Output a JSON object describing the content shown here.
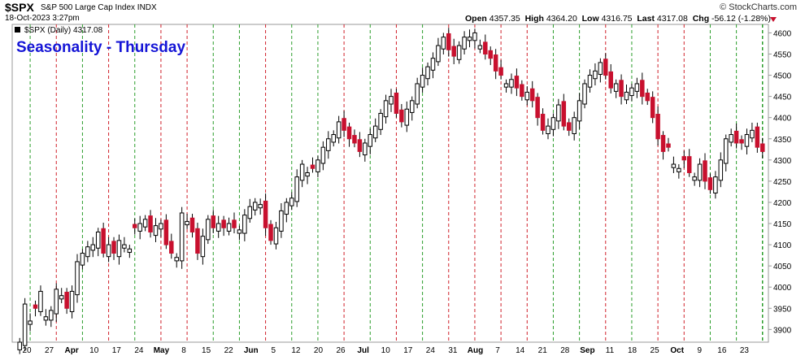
{
  "header": {
    "symbol": "$SPX",
    "description": "S&P 500 Large Cap Index INDX",
    "date": "18-Oct-2023 3:27pm",
    "brand": "© StockCharts.com",
    "open_label": "Open",
    "open": "4357.35",
    "high_label": "High",
    "high": "4364.20",
    "low_label": "Low",
    "low": "4316.75",
    "last_label": "Last",
    "last": "4317.08",
    "chg_label": "Chg",
    "chg": "-56.12 (-1.28%)",
    "legend": "$SPX (Daily) 4317.08",
    "chg_color": "#c8102e"
  },
  "chart_data": {
    "type": "candlestick",
    "title": "Seasonality - Thursday",
    "title_color": "#1515d6",
    "up_color": "#ffffff",
    "down_color": "#c8102e",
    "ylim": [
      3870,
      4620
    ],
    "yticks": [
      3900,
      3950,
      4000,
      4050,
      4100,
      4150,
      4200,
      4250,
      4300,
      4350,
      4400,
      4450,
      4500,
      4550,
      4600
    ],
    "x_labels": [
      "20",
      "27",
      "Apr",
      "10",
      "17",
      "24",
      "May",
      "8",
      "15",
      "22",
      "Jun",
      "5",
      "12",
      "20",
      "26",
      "Jul",
      "10",
      "17",
      "24",
      "31",
      "Aug",
      "7",
      "14",
      "21",
      "28",
      "Sep",
      "11",
      "18",
      "25",
      "Oct",
      "9",
      "16",
      "23"
    ],
    "thursday_line_colors": [
      "green",
      "red"
    ],
    "closes": [
      3870,
      3960,
      3920,
      3950,
      3990,
      3930,
      3945,
      3995,
      3980,
      3950,
      3990,
      4060,
      4080,
      4095,
      4100,
      4130,
      4080,
      4100,
      4080,
      4110,
      4100,
      4090,
      4140,
      4150,
      4160,
      4130,
      4145,
      4150,
      4100,
      4080,
      4070,
      4175,
      4155,
      4130,
      4080,
      4120,
      4160,
      4140,
      4150,
      4140,
      4150,
      4140,
      4135,
      4170,
      4190,
      4200,
      4195,
      4140,
      4110,
      4140,
      4180,
      4200,
      4210,
      4260,
      4290,
      4270,
      4280,
      4300,
      4330,
      4350,
      4360,
      4390,
      4370,
      4350,
      4340,
      4320,
      4340,
      4360,
      4380,
      4410,
      4440,
      4450,
      4410,
      4390,
      4420,
      4440,
      4480,
      4500,
      4520,
      4540,
      4570,
      4590,
      4560,
      4545,
      4570,
      4590,
      4590,
      4600,
      4570,
      4550,
      4540,
      4510,
      4500,
      4480,
      4490,
      4470,
      4450,
      4460,
      4440,
      4400,
      4370,
      4380,
      4400,
      4430,
      4380,
      4370,
      4400,
      4440,
      4480,
      4500,
      4510,
      4530,
      4500,
      4470,
      4480,
      4450,
      4460,
      4470,
      4480,
      4450,
      4440,
      4400,
      4350,
      4320,
      4330,
      4290,
      4280,
      4300,
      4270,
      4260,
      4290,
      4250,
      4230,
      4260,
      4300,
      4350,
      4360,
      4340,
      4340,
      4360,
      4370,
      4330,
      4320
    ],
    "down_days": [
      3,
      9,
      16,
      18,
      22,
      25,
      28,
      29,
      33,
      34,
      37,
      39,
      41,
      47,
      48,
      56,
      62,
      63,
      64,
      65,
      72,
      73,
      82,
      83,
      89,
      90,
      91,
      92,
      95,
      96,
      98,
      99,
      100,
      104,
      105,
      112,
      113,
      115,
      119,
      120,
      121,
      122,
      123,
      124,
      127,
      128,
      131,
      132,
      137,
      138,
      141,
      142
    ]
  }
}
